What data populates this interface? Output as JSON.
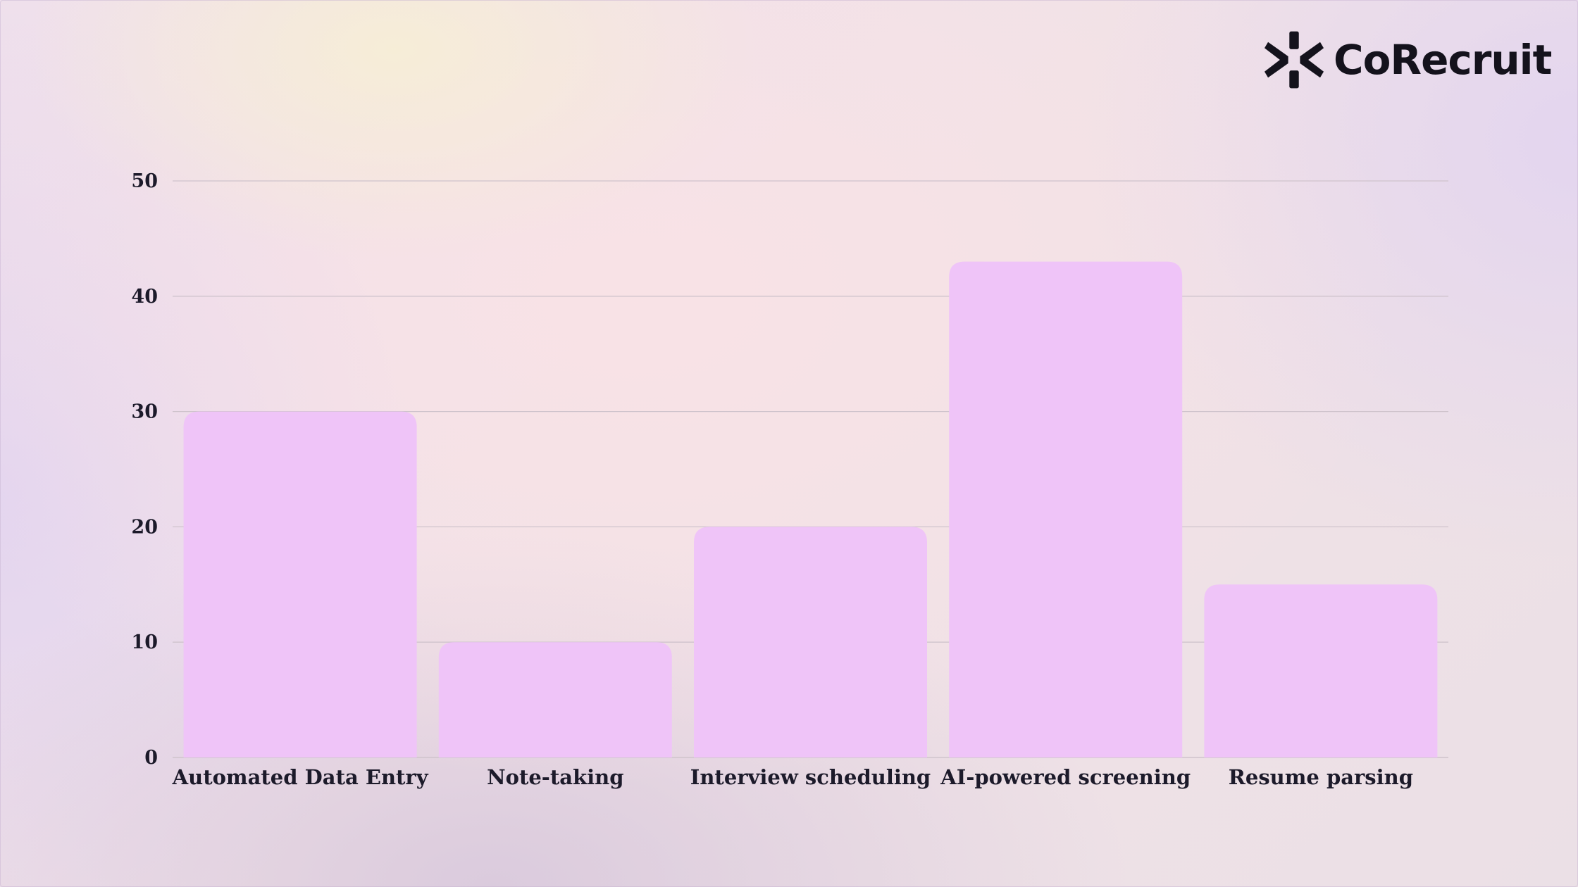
{
  "brand": {
    "name": "CoRecruit",
    "logo_icon": "asterisk-burst-icon",
    "color": "#14121c"
  },
  "chart_data": {
    "type": "bar",
    "categories": [
      "Automated Data Entry",
      "Note-taking",
      "Interview scheduling",
      "AI-powered screening",
      "Resume parsing"
    ],
    "values": [
      30,
      10,
      20,
      43,
      15
    ],
    "title": "",
    "xlabel": "",
    "ylabel": "",
    "ylim": [
      0,
      50
    ],
    "yticks": [
      0,
      10,
      20,
      30,
      40,
      50
    ],
    "grid": true,
    "legend": "none",
    "bar_color": "#efc4f8",
    "grid_color": "#cfc3cc",
    "text_color": "#1c1a2a"
  }
}
